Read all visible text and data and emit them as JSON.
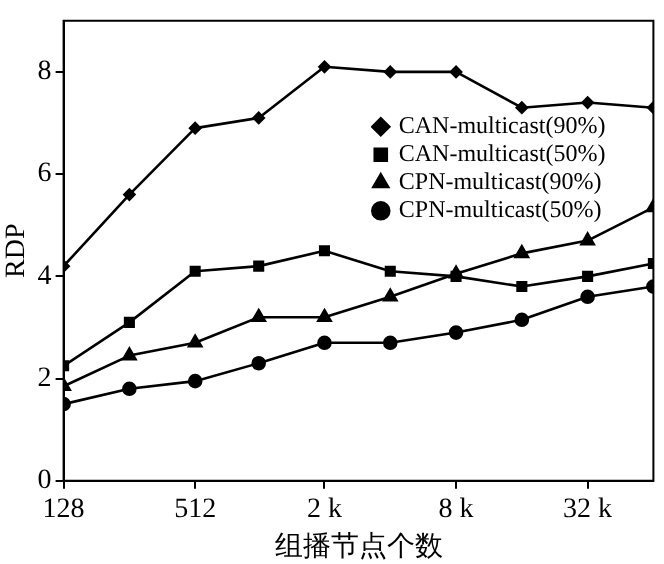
{
  "chart_data": {
    "type": "line",
    "xlabel": "组播节点个数",
    "ylabel": "RDP",
    "log": "x",
    "x": [
      128,
      256,
      512,
      1000,
      2000,
      4000,
      8000,
      16000,
      32000,
      64000
    ],
    "xlim": [
      128,
      64000
    ],
    "xticks": [
      128,
      512,
      {
        "value": 2000,
        "label": "2 k"
      },
      {
        "value": 8000,
        "label": "8 k"
      },
      {
        "value": 32000,
        "label": "32 k"
      }
    ],
    "ylim": [
      0,
      9
    ],
    "yticks": [
      0,
      2,
      4,
      6,
      8
    ],
    "grid": false,
    "legend": "right",
    "line_style": "solid",
    "series": [
      {
        "name": "CAN-multicast(90%)",
        "color": "#000000",
        "marker": "diamond",
        "values": [
          4.2,
          5.6,
          6.9,
          7.1,
          8.1,
          8.0,
          8.0,
          7.3,
          7.4,
          7.3
        ]
      },
      {
        "name": "CAN-multicast(50%)",
        "color": "#000000",
        "marker": "square",
        "values": [
          2.25,
          3.1,
          4.1,
          4.2,
          4.5,
          4.1,
          4.0,
          3.8,
          4.0,
          4.25
        ]
      },
      {
        "name": "CPN-multicast(90%)",
        "color": "#000000",
        "marker": "triangle",
        "values": [
          1.85,
          2.45,
          2.7,
          3.2,
          3.2,
          3.6,
          4.05,
          4.45,
          4.7,
          5.35
        ]
      },
      {
        "name": "CPN-multicast(50%)",
        "color": "#000000",
        "marker": "circle",
        "values": [
          1.5,
          1.8,
          1.95,
          2.3,
          2.7,
          2.7,
          2.9,
          3.15,
          3.6,
          3.8
        ]
      }
    ]
  }
}
